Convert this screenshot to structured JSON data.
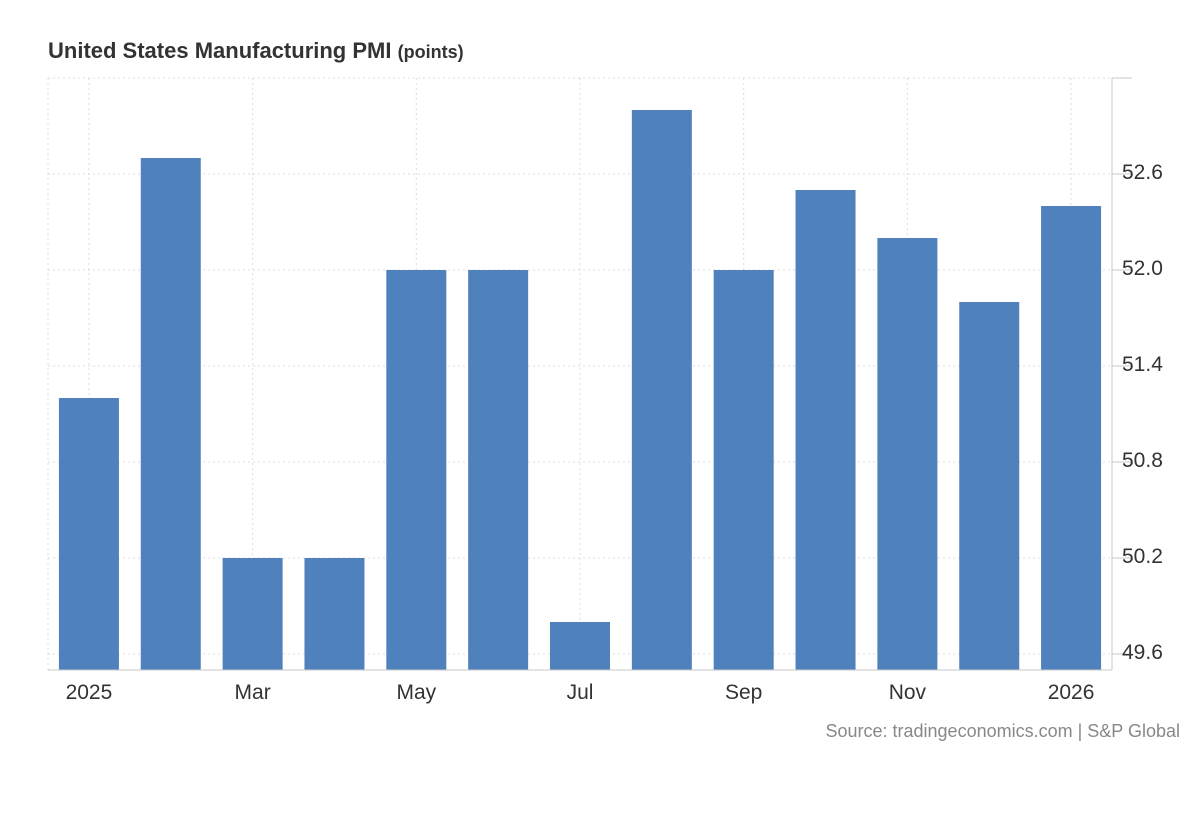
{
  "chart_data": {
    "type": "bar",
    "title": "United States Manufacturing PMI",
    "unit": "(points)",
    "categories": [
      "Jan 2025",
      "Feb 2025",
      "Mar 2025",
      "Apr 2025",
      "May 2025",
      "Jun 2025",
      "Jul 2025",
      "Aug 2025",
      "Sep 2025",
      "Oct 2025",
      "Nov 2025",
      "Dec 2025",
      "Jan 2026"
    ],
    "values": [
      51.2,
      52.7,
      50.2,
      50.2,
      52.0,
      52.0,
      49.8,
      53.0,
      52.0,
      52.5,
      52.2,
      51.8,
      52.4
    ],
    "x_tick_labels": [
      {
        "index": 0,
        "label": "2025"
      },
      {
        "index": 2,
        "label": "Mar"
      },
      {
        "index": 4,
        "label": "May"
      },
      {
        "index": 6,
        "label": "Jul"
      },
      {
        "index": 8,
        "label": "Sep"
      },
      {
        "index": 10,
        "label": "Nov"
      },
      {
        "index": 12,
        "label": "2026"
      }
    ],
    "y_ticks": [
      "49.6",
      "50.2",
      "50.8",
      "51.4",
      "52.0",
      "52.6"
    ],
    "ylim": [
      49.5,
      53.2
    ],
    "xlabel": "",
    "ylabel": "",
    "grid": true,
    "y_axis_side": "right",
    "bar_color": "#4f81bd"
  },
  "source": "Source: tradingeconomics.com | S&P Global"
}
